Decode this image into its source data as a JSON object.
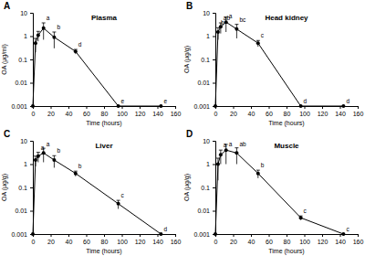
{
  "chart_data": [
    {
      "type": "line",
      "panel_label": "A",
      "title": "Plasma",
      "x_label": "Time (hours)",
      "y_label": "OA (μg/ml)",
      "x": [
        0,
        3,
        6,
        12,
        24,
        48,
        96,
        144
      ],
      "values": [
        0.001,
        0.5,
        1.1,
        2.2,
        0.9,
        0.22,
        0.001,
        0.001
      ],
      "errors": [
        0,
        0.3,
        0.5,
        1.5,
        0.6,
        0.05,
        0,
        0
      ],
      "point_labels": [
        null,
        null,
        null,
        "a",
        "b",
        "d",
        "e",
        "e"
      ],
      "xlim": [
        0,
        160
      ],
      "xticks": [
        0,
        20,
        40,
        60,
        80,
        100,
        120,
        140,
        160
      ],
      "ylim": [
        0.001,
        10
      ],
      "yticks": [
        0.001,
        0.01,
        0.1,
        1,
        10
      ],
      "log": "y",
      "grid": false,
      "color": "#000000",
      "marker": "circle",
      "line_style": "solid"
    },
    {
      "type": "line",
      "panel_label": "B",
      "title": "Head kidney",
      "x_label": "Time (hours)",
      "y_label": "OA (μg/g)",
      "x": [
        0,
        3,
        6,
        12,
        24,
        48,
        96,
        144
      ],
      "values": [
        0.001,
        1.5,
        2.5,
        4,
        2,
        0.5,
        0.001,
        0.001
      ],
      "errors": [
        0,
        0.8,
        1.2,
        2.5,
        1.2,
        0.15,
        0,
        0
      ],
      "point_labels": [
        null,
        "b",
        "ab",
        "a",
        "bc",
        "c",
        "d",
        "d"
      ],
      "xlim": [
        0,
        160
      ],
      "xticks": [
        0,
        20,
        40,
        60,
        80,
        100,
        120,
        140,
        160
      ],
      "ylim": [
        0.001,
        10
      ],
      "yticks": [
        0.001,
        0.01,
        0.1,
        1,
        10
      ],
      "log": "y",
      "grid": false,
      "color": "#000000",
      "marker": "circle",
      "line_style": "solid"
    },
    {
      "type": "line",
      "panel_label": "C",
      "title": "Liver",
      "x_label": "Time (hours)",
      "y_label": "OA (μg/g)",
      "x": [
        0,
        3,
        6,
        12,
        24,
        48,
        96,
        144
      ],
      "values": [
        0.001,
        1.5,
        2.2,
        3,
        1.5,
        0.4,
        0.02,
        0.001
      ],
      "errors": [
        0,
        0.7,
        1,
        1.8,
        0.8,
        0.1,
        0.008,
        0
      ],
      "point_labels": [
        null,
        null,
        "a",
        "a",
        "b",
        "b",
        "c",
        "d"
      ],
      "xlim": [
        0,
        160
      ],
      "xticks": [
        0,
        20,
        40,
        60,
        80,
        100,
        120,
        140,
        160
      ],
      "ylim": [
        0.001,
        10
      ],
      "yticks": [
        0.001,
        0.01,
        0.1,
        1,
        10
      ],
      "log": "y",
      "grid": false,
      "color": "#000000",
      "marker": "circle",
      "line_style": "solid"
    },
    {
      "type": "line",
      "panel_label": "D",
      "title": "Muscle",
      "x_label": "Time (hours)",
      "y_label": "OA (μg/g)",
      "x": [
        0,
        3,
        6,
        12,
        24,
        48,
        96,
        144
      ],
      "values": [
        0.001,
        1,
        2.5,
        4,
        3,
        0.4,
        0.005,
        0.001
      ],
      "errors": [
        0,
        0.8,
        1.5,
        3,
        2,
        0.15,
        0.001,
        0
      ],
      "point_labels": [
        null,
        null,
        "a",
        "a",
        "ab",
        "b",
        "c",
        "c"
      ],
      "xlim": [
        0,
        160
      ],
      "xticks": [
        0,
        20,
        40,
        60,
        80,
        100,
        120,
        140,
        160
      ],
      "ylim": [
        0.001,
        10
      ],
      "yticks": [
        0.001,
        0.01,
        0.1,
        1,
        10
      ],
      "log": "y",
      "grid": false,
      "color": "#000000",
      "marker": "circle",
      "line_style": "solid"
    }
  ]
}
